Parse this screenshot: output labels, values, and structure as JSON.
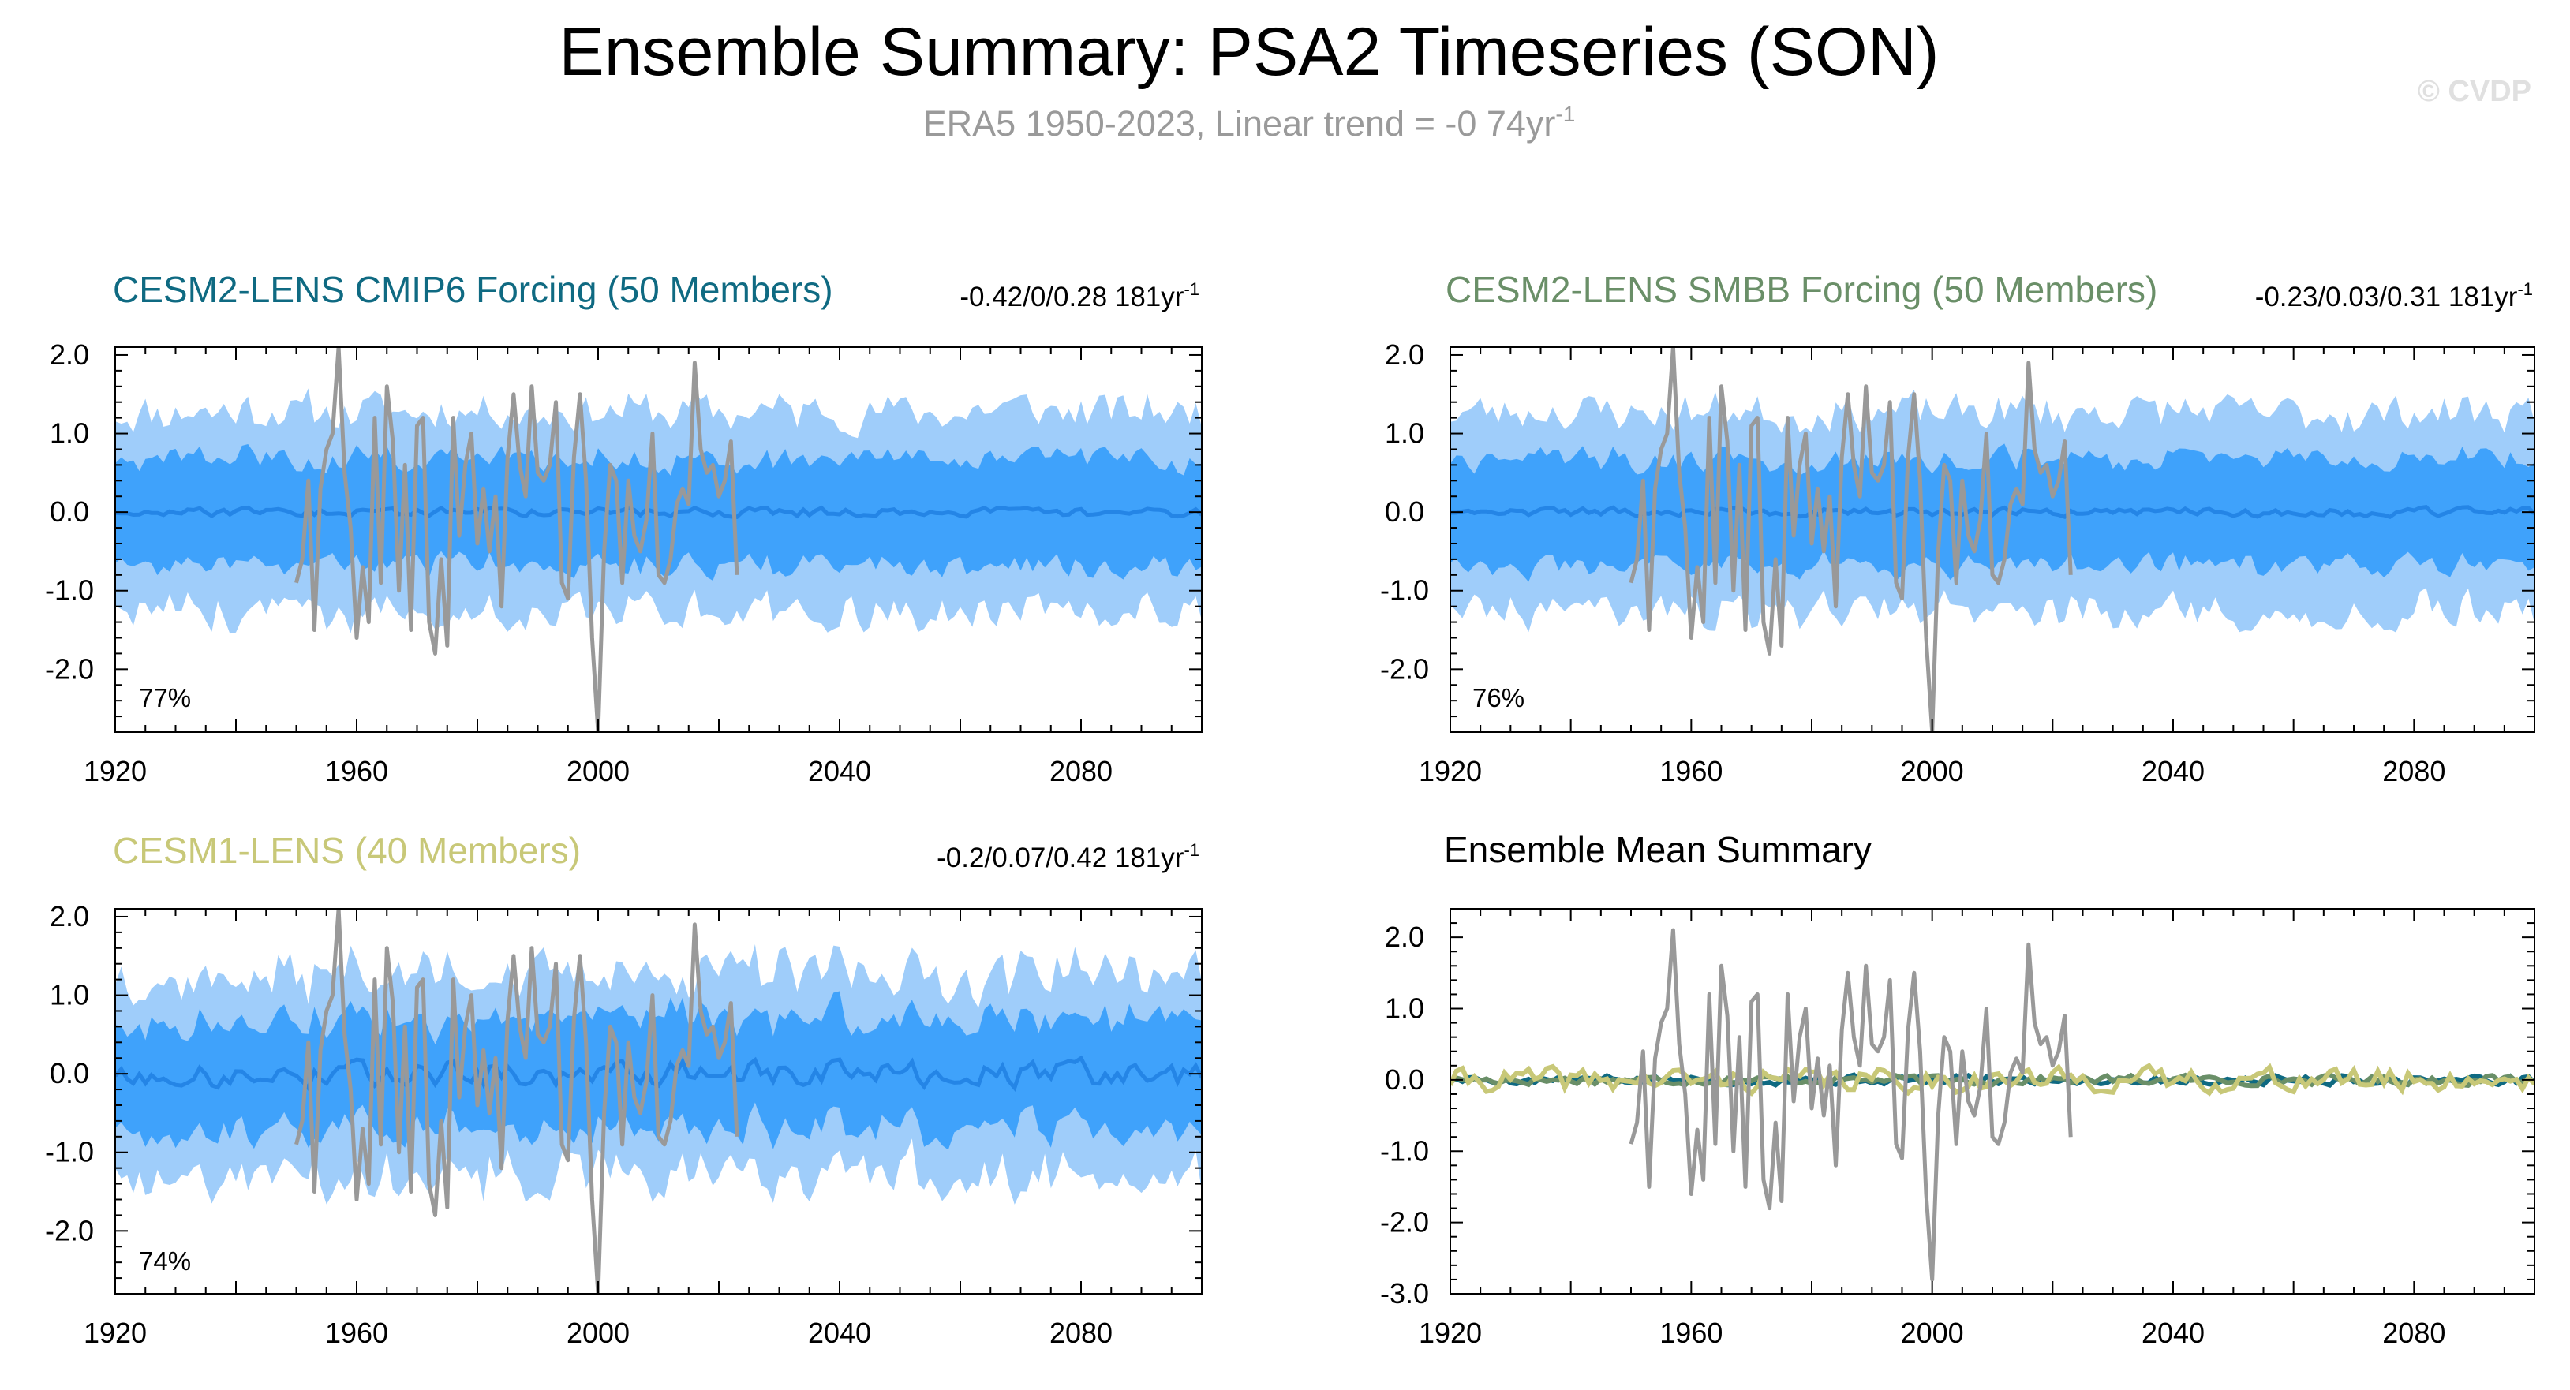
{
  "title": "Ensemble Summary: PSA2 Timeseries (SON)",
  "subtitle": {
    "prefix": "ERA5 1950-2023, Linear trend = -0 74yr",
    "exponent": "-1"
  },
  "watermark": "© CVDP",
  "colors": {
    "outer_band": "#9fcdfa",
    "inner_band": "#3fa2fb",
    "ensemble_mean": "#2485e6",
    "observations": "#999999",
    "cmip6_title": "#0f6a82",
    "smbb_title": "#6a8f68",
    "cesm1_title": "#c8c878",
    "mean_title": "#000000"
  },
  "chart_data": [
    {
      "type": "area",
      "id": "cmip6",
      "title": "CESM2-LENS CMIP6 Forcing (50 Members)",
      "trend_label": "-0.42/0/0.28 181yr",
      "trend_exponent": "-1",
      "percent_label": "77%",
      "xlim": [
        1920,
        2100
      ],
      "ylim": [
        -2.8,
        2.1
      ],
      "xticks": [
        "1920",
        "1960",
        "2000",
        "2040",
        "2080"
      ],
      "yticks": [
        "2.0",
        "1.0",
        "0.0",
        "-1.0",
        "-2.0"
      ],
      "series": [
        {
          "name": "Ensemble 10-90% range",
          "seed": 11,
          "half_width": 1.28,
          "jitter": 0.22,
          "center_noise": 0.05
        },
        {
          "name": "Ensemble 25-75% range",
          "half_width": 0.68
        },
        {
          "name": "Ensemble mean",
          "amplitude": 0.05
        },
        {
          "name": "ERA5",
          "values": [
            -0.9,
            -0.6,
            0.4,
            -1.5,
            0.3,
            0.8,
            1.0,
            2.1,
            0.5,
            -0.2,
            -1.6,
            -0.7,
            -1.4,
            1.2,
            -0.9,
            1.6,
            0.9,
            -1.0,
            0.6,
            -1.5,
            1.1,
            1.2,
            -1.4,
            -1.8,
            -0.6,
            -1.7,
            1.2,
            -0.3,
            0.6,
            1.0,
            -0.4,
            0.3,
            -0.5,
            0.2,
            -1.2,
            0.7,
            1.5,
            0.6,
            0.2,
            1.6,
            0.5,
            0.4,
            0.6,
            1.4,
            -0.9,
            -1.1,
            0.7,
            1.5,
            0.4,
            -1.6,
            -2.8,
            -0.5,
            0.6,
            0.4,
            -0.9,
            0.4,
            -0.3,
            -0.5,
            -0.1,
            1.0,
            -0.8,
            -0.9,
            -0.6,
            0.1,
            0.3,
            0.1,
            1.9,
            0.8,
            0.5,
            0.6,
            0.2,
            0.4,
            0.9,
            -0.8
          ]
        }
      ]
    },
    {
      "type": "area",
      "id": "smbb",
      "title": "CESM2-LENS SMBB Forcing (50 Members)",
      "trend_label": "-0.23/0.03/0.31 181yr",
      "trend_exponent": "-1",
      "percent_label": "76%",
      "xlim": [
        1920,
        2100
      ],
      "ylim": [
        -2.8,
        2.1
      ],
      "xticks": [
        "1920",
        "1960",
        "2000",
        "2040",
        "2080"
      ],
      "yticks": [
        "2.0",
        "1.0",
        "0.0",
        "-1.0",
        "-2.0"
      ],
      "series": [
        {
          "name": "Ensemble 10-90% range",
          "seed": 23,
          "half_width": 1.27,
          "jitter": 0.22,
          "center_noise": 0.05
        },
        {
          "name": "Ensemble 25-75% range",
          "half_width": 0.67
        },
        {
          "name": "Ensemble mean",
          "amplitude": 0.05
        },
        {
          "name": "ERA5",
          "values": [
            -0.9,
            -0.6,
            0.4,
            -1.5,
            0.3,
            0.8,
            1.0,
            2.1,
            0.5,
            -0.2,
            -1.6,
            -0.7,
            -1.4,
            1.2,
            -0.9,
            1.6,
            0.9,
            -1.0,
            0.6,
            -1.5,
            1.1,
            1.2,
            -1.4,
            -1.8,
            -0.6,
            -1.7,
            1.2,
            -0.3,
            0.6,
            1.0,
            -0.4,
            0.3,
            -0.5,
            0.2,
            -1.2,
            0.7,
            1.5,
            0.6,
            0.2,
            1.6,
            0.5,
            0.4,
            0.6,
            1.4,
            -0.9,
            -1.1,
            0.7,
            1.5,
            0.4,
            -1.6,
            -2.8,
            -0.5,
            0.6,
            0.4,
            -0.9,
            0.4,
            -0.3,
            -0.5,
            -0.1,
            1.0,
            -0.8,
            -0.9,
            -0.6,
            0.1,
            0.3,
            0.1,
            1.9,
            0.8,
            0.5,
            0.6,
            0.2,
            0.4,
            0.9,
            -0.8
          ]
        }
      ]
    },
    {
      "type": "area",
      "id": "cesm1",
      "title": "CESM1-LENS (40 Members)",
      "trend_label": "-0.2/0.07/0.42 181yr",
      "trend_exponent": "-1",
      "percent_label": "74%",
      "xlim": [
        1920,
        2100
      ],
      "ylim": [
        -2.8,
        2.1
      ],
      "xticks": [
        "1920",
        "1960",
        "2000",
        "2040",
        "2080"
      ],
      "yticks": [
        "2.0",
        "1.0",
        "0.0",
        "-1.0",
        "-2.0"
      ],
      "series": [
        {
          "name": "Ensemble 10-90% range",
          "seed": 37,
          "half_width": 1.28,
          "jitter": 0.25,
          "center_noise": 0.12
        },
        {
          "name": "Ensemble 25-75% range",
          "half_width": 0.7
        },
        {
          "name": "Ensemble mean",
          "amplitude": 0.15
        },
        {
          "name": "ERA5",
          "values": [
            -0.9,
            -0.6,
            0.4,
            -1.5,
            0.3,
            0.8,
            1.0,
            2.1,
            0.5,
            -0.2,
            -1.6,
            -0.7,
            -1.4,
            1.2,
            -0.9,
            1.6,
            0.9,
            -1.0,
            0.6,
            -1.5,
            1.1,
            1.2,
            -1.4,
            -1.8,
            -0.6,
            -1.7,
            1.2,
            -0.3,
            0.6,
            1.0,
            -0.4,
            0.3,
            -0.5,
            0.2,
            -1.2,
            0.7,
            1.5,
            0.6,
            0.2,
            1.6,
            0.5,
            0.4,
            0.6,
            1.4,
            -0.9,
            -1.1,
            0.7,
            1.5,
            0.4,
            -1.6,
            -2.8,
            -0.5,
            0.6,
            0.4,
            -0.9,
            0.4,
            -0.3,
            -0.5,
            -0.1,
            1.0,
            -0.8,
            -0.9,
            -0.6,
            0.1,
            0.3,
            0.1,
            1.9,
            0.8,
            0.5,
            0.6,
            0.2,
            0.4,
            0.9,
            -0.8
          ]
        }
      ]
    },
    {
      "type": "line",
      "id": "mean",
      "title": "Ensemble Mean Summary",
      "xlim": [
        1920,
        2100
      ],
      "ylim": [
        -3.0,
        2.4
      ],
      "xticks": [
        "1920",
        "1960",
        "2000",
        "2040",
        "2080"
      ],
      "yticks": [
        "2.0",
        "1.0",
        "0.0",
        "-1.0",
        "-2.0",
        "-3.0"
      ],
      "series": [
        {
          "name": "CESM2-LENS CMIP6 Forcing",
          "seed": 5,
          "amplitude": 0.06,
          "color": "#0f6a82"
        },
        {
          "name": "CESM2-LENS SMBB Forcing",
          "seed": 17,
          "amplitude": 0.06,
          "color": "#6a8f68"
        },
        {
          "name": "CESM1-LENS",
          "seed": 41,
          "amplitude": 0.15,
          "color": "#c8c878"
        },
        {
          "name": "ERA5",
          "values": [
            -0.9,
            -0.6,
            0.4,
            -1.5,
            0.3,
            0.8,
            1.0,
            2.1,
            0.5,
            -0.2,
            -1.6,
            -0.7,
            -1.4,
            1.2,
            -0.9,
            1.6,
            0.9,
            -1.0,
            0.6,
            -1.5,
            1.1,
            1.2,
            -1.4,
            -1.8,
            -0.6,
            -1.7,
            1.2,
            -0.3,
            0.6,
            1.0,
            -0.4,
            0.3,
            -0.5,
            0.2,
            -1.2,
            0.7,
            1.5,
            0.6,
            0.2,
            1.6,
            0.5,
            0.4,
            0.6,
            1.4,
            -0.9,
            -1.1,
            0.7,
            1.5,
            0.4,
            -1.6,
            -2.8,
            -0.5,
            0.6,
            0.4,
            -0.9,
            0.4,
            -0.3,
            -0.5,
            -0.1,
            1.0,
            -0.8,
            -0.9,
            -0.6,
            0.1,
            0.3,
            0.1,
            1.9,
            0.8,
            0.5,
            0.6,
            0.2,
            0.4,
            0.9,
            -0.8
          ],
          "color": "#999999"
        }
      ]
    }
  ]
}
